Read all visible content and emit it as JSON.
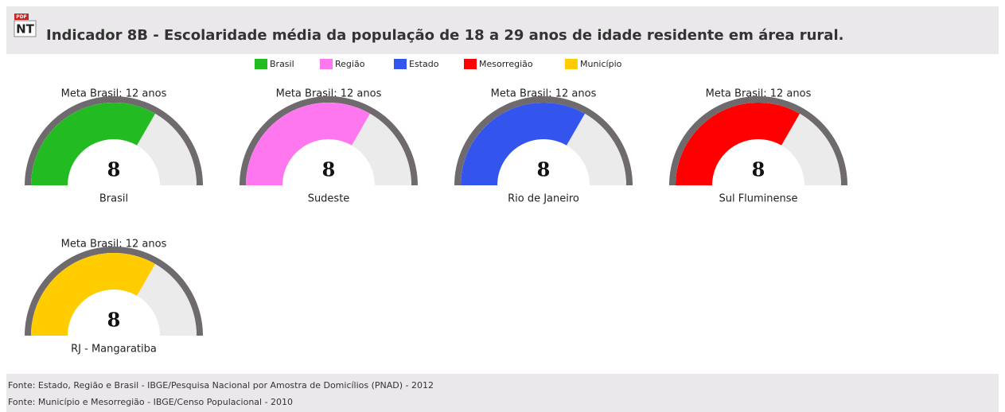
{
  "header": {
    "icon_badge": "PDF",
    "icon": "NT",
    "title": "Indicador 8B - Escolaridade média da população de 18 a 29 anos de idade residente em área rural."
  },
  "legend": {
    "items": [
      {
        "name": "Brasil",
        "color": "#22bb22"
      },
      {
        "name": "Região",
        "color": "#ff77ee"
      },
      {
        "name": "Estado",
        "color": "#3355ee"
      },
      {
        "name": "Mesorregião",
        "color": "#ff0000"
      },
      {
        "name": "Município",
        "color": "#ffcc00"
      }
    ]
  },
  "chart_data": [
    {
      "type": "gauge",
      "title": "Meta Brasil: 12 anos",
      "label": "Brasil",
      "value": 8,
      "ylim": [
        0,
        12
      ],
      "color": "#22bb22"
    },
    {
      "type": "gauge",
      "title": "Meta Brasil: 12 anos",
      "label": "Sudeste",
      "value": 8,
      "ylim": [
        0,
        12
      ],
      "color": "#ff77ee"
    },
    {
      "type": "gauge",
      "title": "Meta Brasil: 12 anos",
      "label": "Rio de Janeiro",
      "value": 8,
      "ylim": [
        0,
        12
      ],
      "color": "#3355ee"
    },
    {
      "type": "gauge",
      "title": "Meta Brasil: 12 anos",
      "label": "Sul Fluminense",
      "value": 8,
      "ylim": [
        0,
        12
      ],
      "color": "#ff0000"
    },
    {
      "type": "gauge",
      "title": "Meta Brasil: 12 anos",
      "label": "RJ - Mangaratiba",
      "value": 8,
      "ylim": [
        0,
        12
      ],
      "color": "#ffcc00"
    }
  ],
  "footer": {
    "sources": [
      "Fonte: Estado, Região e Brasil - IBGE/Pesquisa Nacional por Amostra de Domicílios (PNAD) - 2012",
      "Fonte: Município e Mesorregião - IBGE/Censo Populacional - 2010"
    ]
  }
}
